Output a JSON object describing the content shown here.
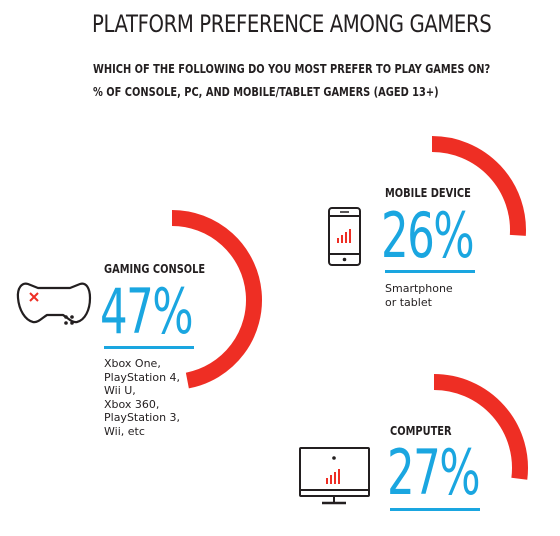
{
  "title": "PLATFORM PREFERENCE AMONG GAMERS",
  "subtitle_lines": [
    "WHICH OF THE FOLLOWING DO YOU MOST PREFER TO PLAY GAMES ON?",
    "% OF CONSOLE, PC, AND MOBILE/TABLET GAMERS (AGED 13+)"
  ],
  "colors": {
    "arc": "#ee2e24",
    "accent": "#1aa6e0",
    "text": "#231f20"
  },
  "chart_data": {
    "type": "pie",
    "title": "PLATFORM PREFERENCE AMONG GAMERS",
    "unit": "%",
    "slices": [
      {
        "label": "GAMING CONSOLE",
        "value": 47,
        "value_label": "47%",
        "icon": "game-controller-icon",
        "description": [
          "Xbox One,",
          "PlayStation 4,",
          "Wii U,",
          "Xbox 360,",
          "PlayStation 3,",
          "Wii, etc"
        ]
      },
      {
        "label": "MOBILE DEVICE",
        "value": 26,
        "value_label": "26%",
        "icon": "smartphone-icon",
        "description": [
          "Smartphone",
          "or tablet"
        ]
      },
      {
        "label": "COMPUTER",
        "value": 27,
        "value_label": "27%",
        "icon": "computer-monitor-icon",
        "description": []
      }
    ]
  }
}
